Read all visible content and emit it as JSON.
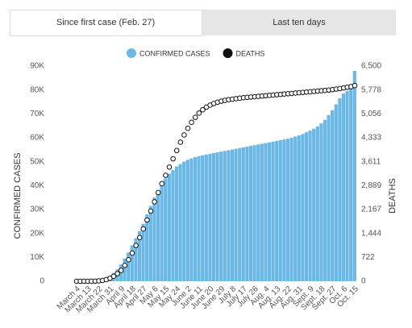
{
  "tabs": [
    "Since first case (Feb. 27)",
    "Last ten days"
  ],
  "chart_data": {
    "type": "bar",
    "categories": [
      "March 4",
      null,
      null,
      "March 13",
      null,
      null,
      "March 22",
      null,
      null,
      "March 31",
      null,
      null,
      "April 9",
      null,
      null,
      "April 18",
      null,
      null,
      "April 27",
      null,
      null,
      "May 6",
      null,
      null,
      "May 15",
      null,
      null,
      "May 24",
      null,
      null,
      "June 2",
      null,
      null,
      "June 11",
      null,
      null,
      "June 20",
      null,
      null,
      "June 29",
      null,
      null,
      "July 8",
      null,
      null,
      "July 17",
      null,
      null,
      "July 26",
      null,
      null,
      "Aug. 4",
      null,
      null,
      "Aug. 13",
      null,
      null,
      "Aug. 22",
      null,
      null,
      "Aug. 31",
      null,
      null,
      "Sept. 9",
      null,
      null,
      "Sept. 18",
      null,
      null,
      "Sept. 27",
      null,
      null,
      "Oct. 6",
      null,
      null,
      "Oct. 15"
    ],
    "series": [
      {
        "name": "CONFIRMED CASES",
        "color": "#6bb8e6",
        "type": "bar",
        "values": [
          0,
          0,
          0,
          0,
          0,
          100,
          300,
          700,
          1200,
          2000,
          3500,
          5000,
          7000,
          9500,
          12000,
          15000,
          18000,
          21000,
          24000,
          28000,
          31500,
          35000,
          38000,
          41000,
          43000,
          45000,
          46500,
          48000,
          49000,
          50000,
          50800,
          51400,
          51900,
          52300,
          52700,
          53000,
          53300,
          53600,
          53900,
          54200,
          54500,
          54800,
          55100,
          55400,
          55700,
          56000,
          56300,
          56600,
          56900,
          57200,
          57500,
          57800,
          58100,
          58400,
          58700,
          59000,
          59300,
          59600,
          60000,
          60500,
          61000,
          61600,
          62300,
          63000,
          63800,
          64800,
          66000,
          67500,
          69500,
          71500,
          74000,
          76500,
          78500,
          79500,
          82000,
          88000
        ]
      },
      {
        "name": "DEATHS",
        "color": "#111111",
        "type": "scatter",
        "axis": "y2",
        "values": [
          0,
          0,
          0,
          0,
          1,
          3,
          10,
          25,
          50,
          90,
          150,
          230,
          330,
          480,
          650,
          850,
          1080,
          1320,
          1580,
          1850,
          2120,
          2400,
          2680,
          2950,
          3200,
          3450,
          3700,
          3950,
          4200,
          4420,
          4620,
          4800,
          4950,
          5080,
          5180,
          5260,
          5320,
          5370,
          5410,
          5440,
          5465,
          5485,
          5500,
          5515,
          5530,
          5545,
          5555,
          5565,
          5575,
          5585,
          5595,
          5605,
          5615,
          5625,
          5635,
          5645,
          5655,
          5665,
          5675,
          5685,
          5695,
          5705,
          5715,
          5725,
          5735,
          5745,
          5755,
          5765,
          5775,
          5790,
          5805,
          5820,
          5840,
          5860,
          5880,
          5910
        ]
      }
    ],
    "ylabel": "CONFIRMED CASES",
    "y2label": "DEATHS",
    "ylim": [
      0,
      90000
    ],
    "yticks": [
      0,
      {
        "value": 10000,
        "label": "10K"
      },
      {
        "value": 20000,
        "label": "20K"
      },
      {
        "value": 30000,
        "label": "30K"
      },
      {
        "value": 40000,
        "label": "40K"
      },
      {
        "value": 50000,
        "label": "50K"
      },
      {
        "value": 60000,
        "label": "60K"
      },
      {
        "value": 70000,
        "label": "70K"
      },
      {
        "value": 80000,
        "label": "80K"
      },
      {
        "value": 90000,
        "label": "90K"
      }
    ],
    "y2lim": [
      0,
      6500
    ],
    "y2ticks": [
      0,
      722,
      {
        "value": 1444,
        "label": "1,444"
      },
      {
        "value": 2167,
        "label": "2,167"
      },
      {
        "value": 2889,
        "label": "2,889"
      },
      {
        "value": 3611,
        "label": "3,611"
      },
      {
        "value": 4333,
        "label": "4,333"
      },
      {
        "value": 5056,
        "label": "5,056"
      },
      {
        "value": 5778,
        "label": "5,778"
      },
      {
        "value": 6500,
        "label": "6,500"
      }
    ],
    "legend": "top"
  }
}
